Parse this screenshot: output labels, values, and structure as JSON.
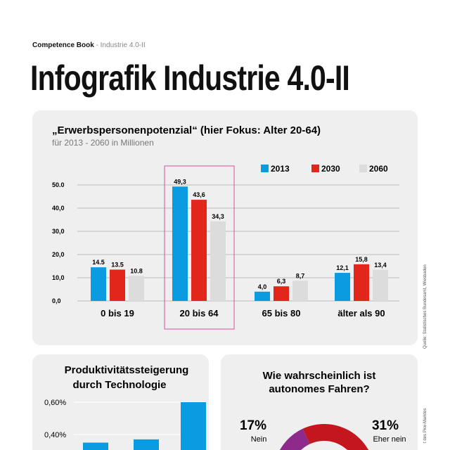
{
  "header": {
    "brand": "Competence Book",
    "section": " - Industrie 4.0-II",
    "title": "Infografik Industrie 4.0-II"
  },
  "colors": {
    "c2013": "#0a9be0",
    "c2030": "#e2261b",
    "c2060": "#dcdcdc",
    "highlight": "#d94f9a",
    "panel": "#efefef",
    "purple": "#8e2a8b",
    "darkred": "#c3161e"
  },
  "chart_data": [
    {
      "type": "bar",
      "title": "„Erwerbspersonenpotenzial“ (hier Fokus: Alter 20-64)",
      "subtitle": "für 2013 - 2060 in Millionen",
      "categories": [
        "0 bis 19",
        "20 bis 64",
        "65 bis 80",
        "älter als 90"
      ],
      "series": [
        {
          "name": "2013",
          "values": [
            14.5,
            49.3,
            4.0,
            12.1
          ],
          "labels": [
            "14.5",
            "49,3",
            "4,0",
            "12,1"
          ]
        },
        {
          "name": "2030",
          "values": [
            13.5,
            43.6,
            6.3,
            15.8
          ],
          "labels": [
            "13.5",
            "43,6",
            "6,3",
            "15,8"
          ]
        },
        {
          "name": "2060",
          "values": [
            10.8,
            34.3,
            8.7,
            13.4
          ],
          "labels": [
            "10.8",
            "34,3",
            "8,7",
            "13,4"
          ]
        }
      ],
      "yticks": [
        "0,0",
        "10,0",
        "20,0",
        "30,0",
        "40,0",
        "50.0"
      ],
      "ylim": [
        0,
        50
      ],
      "grid": true,
      "legend": "top-right",
      "highlighted_category": "20 bis 64",
      "source": "Quelle: Statistisches Bundesamt, Wiesbaden"
    },
    {
      "type": "bar",
      "title": "Produktivitätssteigerung durch Technologie",
      "title_lines": [
        "Produktivitätssteigerung",
        "durch Technologie"
      ],
      "values": [
        0.35,
        0.37,
        0.6
      ],
      "yticks": [
        "0,40%",
        "0,60%"
      ],
      "grid": true
    },
    {
      "type": "pie",
      "title": "Wie wahrscheinlich ist autonomes Fahren?",
      "title_lines": [
        "Wie wahrscheinlich ist",
        "autonomes Fahren?"
      ],
      "slices": [
        {
          "label": "Nein",
          "value": 17,
          "text": "17%"
        },
        {
          "label": "Eher nein",
          "value": 31,
          "text": "31%"
        }
      ],
      "source": "t des Pkw-Marktes"
    }
  ]
}
